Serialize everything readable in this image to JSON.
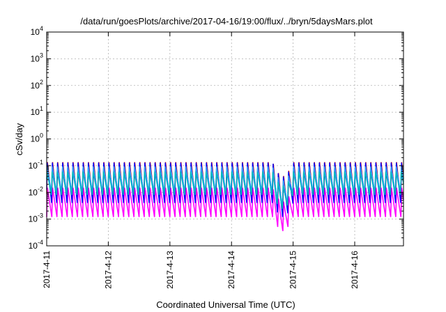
{
  "chart_data": {
    "type": "line",
    "title": "/data/run/goesPlots/archive/2017-04-16/19:00/flux/../bryn/5daysMars.plot",
    "xlabel": "Coordinated Universal Time (UTC)",
    "ylabel": "cSv/day",
    "yscale": "log",
    "ylim": [
      0.0001,
      10000
    ],
    "y_ticks": [
      {
        "base": "10",
        "exp": "-4",
        "value": 0.0001
      },
      {
        "base": "10",
        "exp": "-3",
        "value": 0.001
      },
      {
        "base": "10",
        "exp": "-2",
        "value": 0.01
      },
      {
        "base": "10",
        "exp": "-1",
        "value": 0.1
      },
      {
        "base": "10",
        "exp": "0",
        "value": 1
      },
      {
        "base": "10",
        "exp": "1",
        "value": 10
      },
      {
        "base": "10",
        "exp": "2",
        "value": 100
      },
      {
        "base": "10",
        "exp": "3",
        "value": 1000
      },
      {
        "base": "10",
        "exp": "4",
        "value": 10000
      }
    ],
    "x_ticks": [
      "2017-4-11",
      "2017-4-12",
      "2017-4-13",
      "2017-4-14",
      "2017-4-15",
      "2017-4-16"
    ],
    "xlim": [
      "2017-04-11 00:00",
      "2017-04-16 19:00"
    ],
    "grid": true,
    "orbit_period_hours": 2,
    "series": [
      {
        "color": "#ff00ff",
        "peak": 0.015,
        "trough": 0.0012
      },
      {
        "color": "#cc0000",
        "peak": 0.15,
        "trough": 0.005
      },
      {
        "color": "#0000ff",
        "peak": 0.13,
        "trough": 0.004
      },
      {
        "color": "#3399ff",
        "peak": 0.1,
        "trough": 0.01
      },
      {
        "color": "#00bbbb",
        "peak": 0.06,
        "trough": 0.008
      }
    ]
  }
}
